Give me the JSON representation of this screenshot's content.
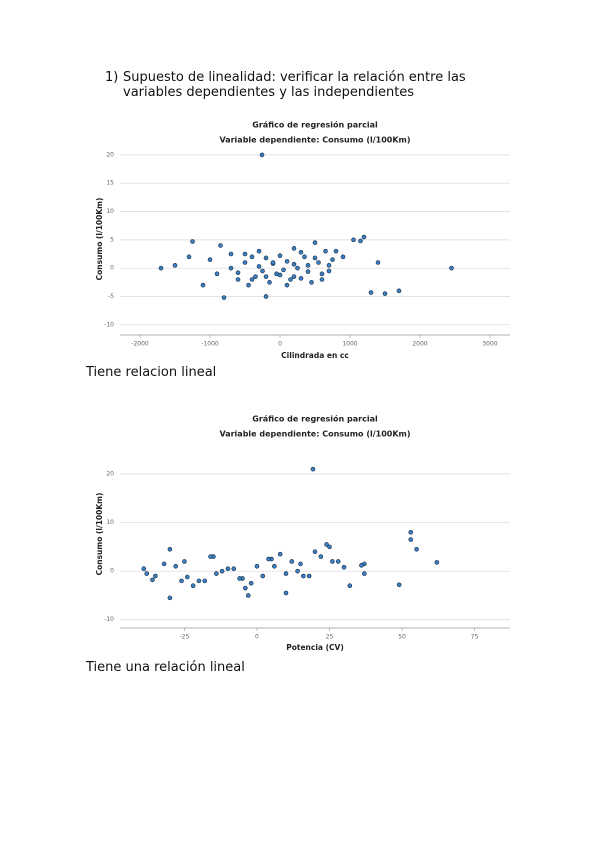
{
  "document": {
    "heading": {
      "number": "1)",
      "text": "Supuesto de linealidad: verificar la relación entre las variables dependientes y las independientes"
    },
    "captions": [
      "Tiene relacion lineal",
      "Tiene una relación lineal"
    ]
  },
  "chart_data": [
    {
      "type": "scatter",
      "title": "Gráfico de regresión parcial",
      "subtitle": "Variable dependiente: Consumo (l/100Km)",
      "x_label": "Cilindrada en cc",
      "y_label": "Consumo (l/100Km)",
      "color": "#3a7fc1",
      "grid": true,
      "xlim": [
        -2286,
        3286
      ],
      "ylim": [
        -11.8,
        22.1
      ],
      "xticks": [
        -2000,
        -1000,
        0,
        1000,
        2000,
        3000
      ],
      "yticks": [
        -10,
        -5,
        0,
        5,
        10,
        15,
        20
      ],
      "x": [
        -1700,
        -1250,
        -850,
        -800,
        -200,
        1200,
        1300,
        1500,
        1700,
        2450,
        1400,
        1050,
        1150,
        800,
        -1300,
        -1100,
        -1500,
        -1000,
        -900,
        -700,
        -600,
        -500,
        -450,
        -400,
        -350,
        -300,
        -250,
        -200,
        -150,
        -100,
        -50,
        0,
        50,
        100,
        150,
        200,
        250,
        300,
        350,
        400,
        450,
        500,
        550,
        600,
        650,
        700,
        750,
        -600,
        -400,
        -300,
        -100,
        0,
        100,
        200,
        300,
        400,
        500,
        600,
        -700,
        -500,
        -200,
        200,
        700,
        900,
        -257
      ],
      "y": [
        0,
        4.7,
        4,
        -5.2,
        -5,
        5.5,
        -4.3,
        -4.5,
        -4,
        0,
        1,
        5,
        4.8,
        3,
        2,
        -3,
        0.5,
        1.5,
        -1,
        2.5,
        -2,
        1,
        -3,
        2,
        -1.5,
        3,
        -0.5,
        1.8,
        -2.5,
        0.8,
        -1,
        2.2,
        -0.3,
        1.2,
        -2,
        3.5,
        0,
        -1.8,
        2,
        0.5,
        -2.5,
        4.5,
        1,
        -1,
        3,
        -0.5,
        1.5,
        -0.8,
        -2,
        0.3,
        1,
        -1.2,
        -3,
        0.7,
        2.8,
        -0.6,
        1.8,
        -2,
        0,
        2.5,
        -1.5,
        -1.5,
        0.5,
        2,
        20
      ]
    },
    {
      "type": "scatter",
      "title": "Gráfico de regresión parcial",
      "subtitle": "Variable dependiente: Consumo (l/100Km)",
      "x_label": "Potencia (CV)",
      "y_label": "Consumo (l/100Km)",
      "color": "#3a7fc1",
      "grid": true,
      "xlim": [
        -47.2,
        87.2
      ],
      "ylim": [
        -11.7,
        27
      ],
      "xticks": [
        -25,
        0,
        25,
        50,
        75
      ],
      "yticks": [
        -10,
        0,
        10,
        20
      ],
      "x": [
        19.3,
        53,
        53,
        55,
        62,
        49,
        37,
        37,
        -30,
        -30,
        -39,
        -38,
        24,
        25,
        -3,
        10,
        -35,
        -25,
        -20,
        -15,
        -10,
        -5,
        0,
        5,
        10,
        15,
        20,
        -22,
        -12,
        -2,
        8,
        18,
        28,
        -28,
        -18,
        -8,
        2,
        12,
        22,
        32,
        -32,
        -14,
        -6,
        4,
        14,
        -26,
        -16,
        6,
        16,
        30,
        -24,
        -4,
        26,
        36,
        -36
      ],
      "y": [
        21,
        8,
        6.5,
        4.5,
        1.8,
        -2.8,
        1.5,
        -0.5,
        -5.5,
        4.5,
        0.5,
        -0.5,
        5.5,
        5,
        -5,
        -4.5,
        -1,
        2,
        -2,
        3,
        0.5,
        -1.5,
        1,
        2.5,
        -0.5,
        1.5,
        4,
        -3,
        0,
        -2.5,
        3.5,
        -1,
        2,
        1,
        -2,
        0.5,
        -1,
        2,
        3,
        -3,
        1.5,
        -0.5,
        -1.5,
        2.5,
        0,
        -2,
        3,
        1,
        -1,
        0.8,
        -1.2,
        -3.5,
        2,
        1.2,
        -1.8
      ]
    }
  ]
}
